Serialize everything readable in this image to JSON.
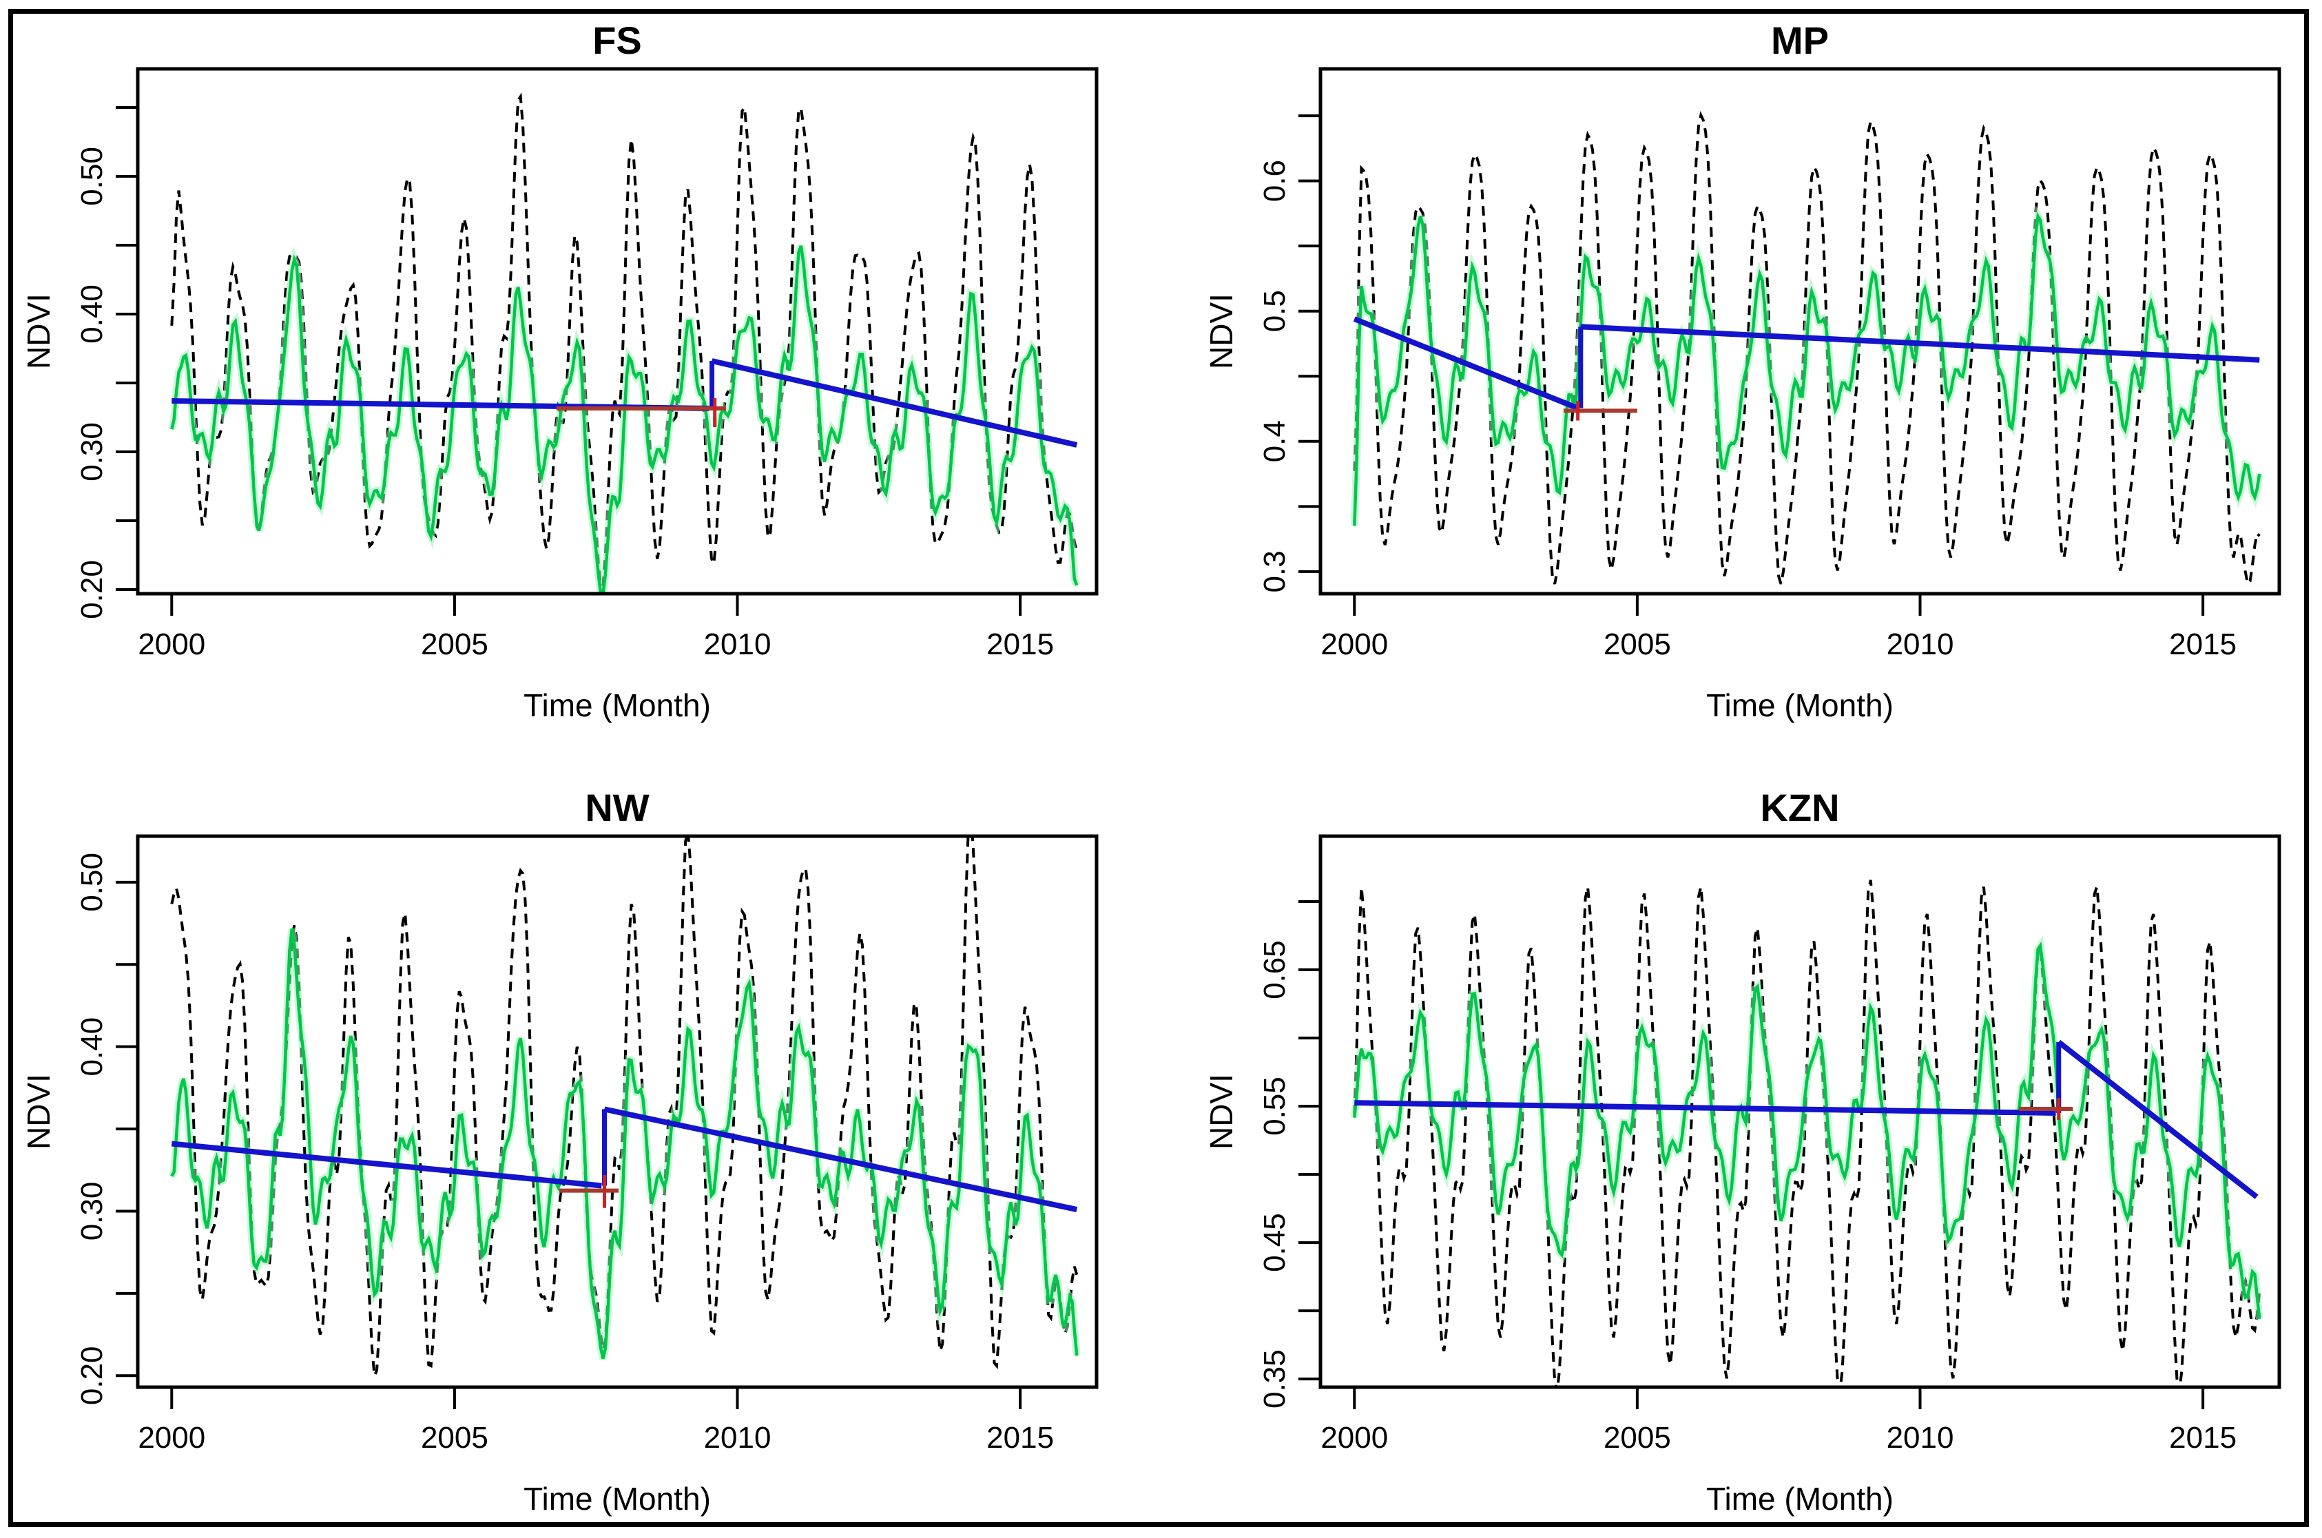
{
  "figure": {
    "description": "Four-panel NDVI time series with BFAST trend breakpoints for South African provinces",
    "grid": "2x2",
    "background": "#ffffff",
    "border_color": "#000000"
  },
  "colors": {
    "observed": "#000000",
    "fitted": "#00c64a",
    "fitted_halo": "#9df2b8",
    "trend": "#1414cc",
    "ci": "#a93a2e",
    "cross": "#cc2222",
    "box": "#000000"
  },
  "chart_data": {
    "type": "line",
    "xlabel": "Time (Month)",
    "ylabel": "NDVI",
    "x_range_years": [
      2000,
      2016
    ],
    "xticks": [
      2000,
      2005,
      2010,
      2015
    ],
    "legend": "none",
    "series_legend": [
      {
        "name": "Observed NDVI",
        "style": "dashed",
        "color_key": "observed"
      },
      {
        "name": "Fitted seasonal NDVI",
        "style": "solid",
        "color_key": "fitted"
      },
      {
        "name": "Trend segments (BFAST)",
        "style": "solid-thick",
        "color_key": "trend"
      },
      {
        "name": "Breakpoint confidence interval",
        "style": "solid",
        "color_key": "ci"
      }
    ],
    "panels": [
      {
        "id": "FS",
        "title": "FS",
        "xlabel": "Time (Month)",
        "ylabel": "NDVI",
        "xlim": [
          1999.4,
          2016.35
        ],
        "ylim": [
          0.197,
          0.578
        ],
        "xticks": [
          2000,
          2005,
          2010,
          2015
        ],
        "yticks_major": [
          [
            0.2,
            "0.20"
          ],
          [
            0.3,
            "0.30"
          ],
          [
            0.4,
            "0.40"
          ],
          [
            0.5,
            "0.50"
          ]
        ],
        "yticks_minor": [
          0.25,
          0.35,
          0.45,
          0.55
        ],
        "observed": {
          "start": 0.38,
          "end": 0.245,
          "wiggle": [
            0.018,
            3.1,
            0.7
          ],
          "years_peak_trough": [
            [
              0.49,
              0.26
            ],
            [
              0.44,
              0.25
            ],
            [
              0.46,
              0.27
            ],
            [
              0.43,
              0.22
            ],
            [
              0.5,
              0.23
            ],
            [
              0.46,
              0.25
            ],
            [
              0.545,
              0.24
            ],
            [
              0.44,
              0.215
            ],
            [
              0.51,
              0.24
            ],
            [
              0.48,
              0.235
            ],
            [
              0.55,
              0.25
            ],
            [
              0.56,
              0.26
            ],
            [
              0.46,
              0.27
            ],
            [
              0.455,
              0.22
            ],
            [
              0.53,
              0.23
            ],
            [
              0.5,
              0.235
            ]
          ]
        },
        "fitted": {
          "start": 0.305,
          "end": 0.21,
          "wiggle": [
            0.012,
            3.6,
            1.9
          ],
          "years_peak_trough": [
            [
              0.37,
              0.3
            ],
            [
              0.385,
              0.25
            ],
            [
              0.435,
              0.27
            ],
            [
              0.38,
              0.26
            ],
            [
              0.365,
              0.25
            ],
            [
              0.375,
              0.27
            ],
            [
              0.41,
              0.29
            ],
            [
              0.375,
              0.205
            ],
            [
              0.37,
              0.29
            ],
            [
              0.385,
              0.3
            ],
            [
              0.4,
              0.31
            ],
            [
              0.44,
              0.3
            ],
            [
              0.365,
              0.28
            ],
            [
              0.36,
              0.255
            ],
            [
              0.405,
              0.26
            ],
            [
              0.38,
              0.27
            ]
          ]
        },
        "trend": {
          "segments": [
            [
              2000.0,
              0.337,
              2009.5,
              0.3315
            ],
            [
              2009.55,
              0.366,
              2016.0,
              0.305
            ]
          ],
          "break_x": 2009.55,
          "ci": [
            2006.8,
            2009.8,
            0.3315
          ],
          "cross": {
            "x": 2009.6,
            "y1": 0.318,
            "y2": 0.339
          }
        }
      },
      {
        "id": "MP",
        "title": "MP",
        "xlabel": "Time (Month)",
        "ylabel": "NDVI",
        "xlim": [
          1999.4,
          2016.35
        ],
        "ylim": [
          0.283,
          0.686
        ],
        "xticks": [
          2000,
          2005,
          2010,
          2015
        ],
        "yticks_major": [
          [
            0.3,
            "0.3"
          ],
          [
            0.4,
            "0.4"
          ],
          [
            0.5,
            "0.5"
          ],
          [
            0.6,
            "0.6"
          ]
        ],
        "yticks_minor": [
          0.35,
          0.45,
          0.55,
          0.65
        ],
        "observed": {
          "start": 0.36,
          "end": 0.31,
          "wiggle": [
            0.02,
            3.0,
            2.1
          ],
          "years_peak_trough": [
            [
              0.63,
              0.32
            ],
            [
              0.6,
              0.33
            ],
            [
              0.64,
              0.32
            ],
            [
              0.6,
              0.29
            ],
            [
              0.655,
              0.3
            ],
            [
              0.645,
              0.31
            ],
            [
              0.67,
              0.295
            ],
            [
              0.6,
              0.29
            ],
            [
              0.63,
              0.3
            ],
            [
              0.665,
              0.32
            ],
            [
              0.64,
              0.31
            ],
            [
              0.66,
              0.32
            ],
            [
              0.62,
              0.31
            ],
            [
              0.63,
              0.3
            ],
            [
              0.645,
              0.32
            ],
            [
              0.64,
              0.31
            ]
          ]
        },
        "fitted": {
          "start": 0.33,
          "end": 0.37,
          "wiggle": [
            0.013,
            3.5,
            0.4
          ],
          "years_peak_trough": [
            [
              0.52,
              0.42
            ],
            [
              0.565,
              0.41
            ],
            [
              0.53,
              0.4
            ],
            [
              0.46,
              0.37
            ],
            [
              0.54,
              0.44
            ],
            [
              0.5,
              0.44
            ],
            [
              0.535,
              0.38
            ],
            [
              0.52,
              0.4
            ],
            [
              0.51,
              0.43
            ],
            [
              0.52,
              0.45
            ],
            [
              0.51,
              0.44
            ],
            [
              0.53,
              0.42
            ],
            [
              0.57,
              0.44
            ],
            [
              0.5,
              0.42
            ],
            [
              0.5,
              0.41
            ],
            [
              0.48,
              0.37
            ]
          ]
        },
        "trend": {
          "segments": [
            [
              2000.0,
              0.494,
              2003.95,
              0.4255
            ],
            [
              2004.0,
              0.488,
              2016.0,
              0.4625
            ]
          ],
          "break_x": 2004.0,
          "ci": [
            2003.7,
            2005.0,
            0.4235
          ],
          "cross": {
            "x": 2003.95,
            "y1": 0.416,
            "y2": 0.431
          }
        }
      },
      {
        "id": "NW",
        "title": "NW",
        "xlabel": "Time (Month)",
        "ylabel": "NDVI",
        "xlim": [
          1999.4,
          2016.35
        ],
        "ylim": [
          0.193,
          0.528
        ],
        "xticks": [
          2000,
          2005,
          2010,
          2015
        ],
        "yticks_major": [
          [
            0.2,
            "0.20"
          ],
          [
            0.3,
            "0.30"
          ],
          [
            0.4,
            "0.40"
          ],
          [
            0.5,
            "0.50"
          ]
        ],
        "yticks_minor": [
          0.25,
          0.35,
          0.45
        ],
        "observed": {
          "start": 0.47,
          "end": 0.25,
          "wiggle": [
            0.018,
            3.2,
            1.2
          ],
          "years_peak_trough": [
            [
              0.5,
              0.25
            ],
            [
              0.46,
              0.24
            ],
            [
              0.465,
              0.23
            ],
            [
              0.45,
              0.215
            ],
            [
              0.47,
              0.22
            ],
            [
              0.44,
              0.25
            ],
            [
              0.52,
              0.23
            ],
            [
              0.39,
              0.22
            ],
            [
              0.47,
              0.26
            ],
            [
              0.52,
              0.24
            ],
            [
              0.49,
              0.25
            ],
            [
              0.52,
              0.27
            ],
            [
              0.46,
              0.24
            ],
            [
              0.41,
              0.23
            ],
            [
              0.53,
              0.22
            ],
            [
              0.43,
              0.24
            ]
          ]
        },
        "fitted": {
          "start": 0.315,
          "end": 0.22,
          "wiggle": [
            0.012,
            3.7,
            2.6
          ],
          "years_peak_trough": [
            [
              0.375,
              0.3
            ],
            [
              0.37,
              0.26
            ],
            [
              0.46,
              0.3
            ],
            [
              0.4,
              0.26
            ],
            [
              0.35,
              0.27
            ],
            [
              0.35,
              0.28
            ],
            [
              0.395,
              0.29
            ],
            [
              0.385,
              0.215
            ],
            [
              0.39,
              0.31
            ],
            [
              0.4,
              0.32
            ],
            [
              0.435,
              0.33
            ],
            [
              0.41,
              0.31
            ],
            [
              0.35,
              0.29
            ],
            [
              0.36,
              0.25
            ],
            [
              0.41,
              0.26
            ],
            [
              0.35,
              0.25
            ]
          ]
        },
        "trend": {
          "segments": [
            [
              2000.0,
              0.341,
              2007.6,
              0.3155
            ],
            [
              2007.65,
              0.362,
              2016.0,
              0.301
            ]
          ],
          "break_x": 2007.65,
          "ci": [
            2006.85,
            2007.9,
            0.3125
          ],
          "cross": {
            "x": 2007.65,
            "y1": 0.302,
            "y2": 0.322
          }
        }
      },
      {
        "id": "KZN",
        "title": "KZN",
        "xlabel": "Time (Month)",
        "ylabel": "NDVI",
        "xlim": [
          1999.4,
          2016.35
        ],
        "ylim": [
          0.344,
          0.748
        ],
        "xticks": [
          2000,
          2005,
          2010,
          2015
        ],
        "yticks_major": [
          [
            0.35,
            "0.35"
          ],
          [
            0.45,
            "0.45"
          ],
          [
            0.55,
            "0.55"
          ],
          [
            0.65,
            "0.65"
          ]
        ],
        "yticks_minor": [
          0.4,
          0.5,
          0.6,
          0.7
        ],
        "observed": {
          "start": 0.54,
          "end": 0.41,
          "wiggle": [
            0.02,
            3.0,
            0.2
          ],
          "years_peak_trough": [
            [
              0.7,
              0.41
            ],
            [
              0.67,
              0.39
            ],
            [
              0.68,
              0.4
            ],
            [
              0.655,
              0.36
            ],
            [
              0.7,
              0.4
            ],
            [
              0.695,
              0.38
            ],
            [
              0.7,
              0.37
            ],
            [
              0.67,
              0.4
            ],
            [
              0.66,
              0.36
            ],
            [
              0.705,
              0.41
            ],
            [
              0.68,
              0.37
            ],
            [
              0.7,
              0.43
            ],
            [
              0.655,
              0.42
            ],
            [
              0.7,
              0.39
            ],
            [
              0.68,
              0.36
            ],
            [
              0.66,
              0.4
            ]
          ]
        },
        "fitted": {
          "start": 0.53,
          "end": 0.4,
          "wiggle": [
            0.013,
            3.4,
            1.1
          ],
          "years_peak_trough": [
            [
              0.6,
              0.52
            ],
            [
              0.61,
              0.51
            ],
            [
              0.625,
              0.48
            ],
            [
              0.6,
              0.44
            ],
            [
              0.585,
              0.5
            ],
            [
              0.61,
              0.51
            ],
            [
              0.595,
              0.49
            ],
            [
              0.63,
              0.475
            ],
            [
              0.6,
              0.5
            ],
            [
              0.61,
              0.48
            ],
            [
              0.59,
              0.45
            ],
            [
              0.605,
              0.5
            ],
            [
              0.66,
              0.52
            ],
            [
              0.61,
              0.47
            ],
            [
              0.575,
              0.46
            ],
            [
              0.59,
              0.43
            ]
          ]
        },
        "trend": {
          "segments": [
            [
              2000.0,
              0.5525,
              2012.4,
              0.545
            ],
            [
              2012.45,
              0.597,
              2015.95,
              0.4835
            ]
          ],
          "break_x": 2012.45,
          "ci": [
            2011.75,
            2012.7,
            0.548
          ],
          "cross": {
            "x": 2012.45,
            "y1": 0.54,
            "y2": 0.556
          }
        }
      }
    ]
  }
}
